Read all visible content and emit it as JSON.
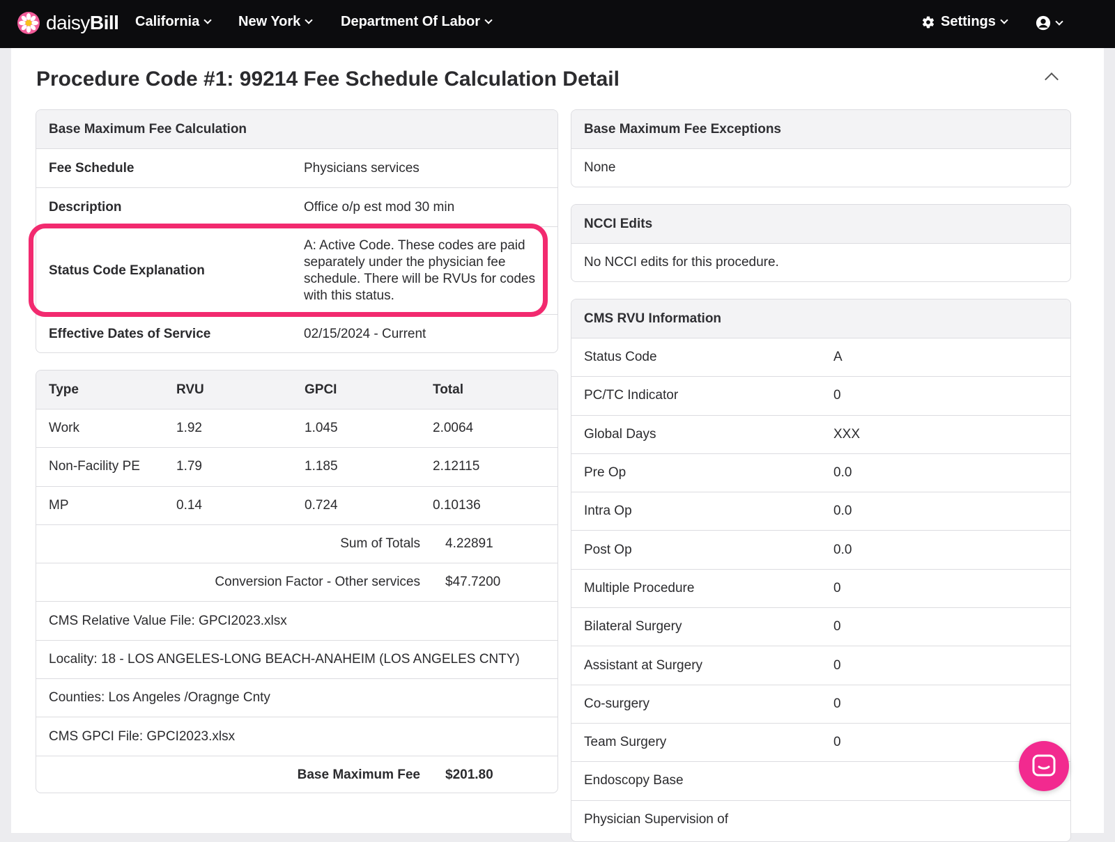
{
  "brand": {
    "name_light": "daisy",
    "name_bold": "Bill"
  },
  "nav": {
    "california": "California",
    "new_york": "New York",
    "dol": "Department Of Labor",
    "settings": "Settings"
  },
  "page": {
    "title_bold": "Procedure Code #1: 99214",
    "title_rest": " Fee Schedule Calculation Detail"
  },
  "base_calc": {
    "heading": "Base Maximum Fee Calculation",
    "rows": [
      {
        "k": "Fee Schedule",
        "v": "Physicians services"
      },
      {
        "k": "Description",
        "v": "Office o/p est mod 30 min"
      },
      {
        "k": "Status Code Explanation",
        "v": "A: Active Code. These codes are paid separately under the physician fee schedule. There will be RVUs for codes with this status."
      },
      {
        "k": "Effective Dates of Service",
        "v": "02/15/2024 - Current"
      }
    ]
  },
  "rvu_table": {
    "headers": [
      "Type",
      "RVU",
      "GPCI",
      "Total"
    ],
    "rows": [
      [
        "Work",
        "1.92",
        "1.045",
        "2.0064"
      ],
      [
        "Non-Facility PE",
        "1.79",
        "1.185",
        "2.12115"
      ],
      [
        "MP",
        "0.14",
        "0.724",
        "0.10136"
      ]
    ],
    "sum_label": "Sum of Totals",
    "sum_value": "4.22891",
    "cf_label": "Conversion Factor - Other services",
    "cf_value": "$47.7200",
    "rv_file": "CMS Relative Value File: GPCI2023.xlsx",
    "locality": "Locality: 18 - LOS ANGELES-LONG BEACH-ANAHEIM (LOS ANGELES CNTY)",
    "counties": "Counties: Los Angeles /Oragnge Cnty",
    "gpci_file": "CMS GPCI File: GPCI2023.xlsx",
    "bmf_label": "Base Maximum Fee",
    "bmf_value": "$201.80"
  },
  "exceptions": {
    "heading": "Base Maximum Fee Exceptions",
    "body": "None"
  },
  "ncci": {
    "heading": "NCCI Edits",
    "body": "No NCCI edits for this procedure."
  },
  "cms_rvu": {
    "heading": "CMS RVU Information",
    "rows": [
      {
        "k": "Status Code",
        "v": "A"
      },
      {
        "k": "PC/TC Indicator",
        "v": "0"
      },
      {
        "k": "Global Days",
        "v": "XXX"
      },
      {
        "k": "Pre Op",
        "v": "0.0"
      },
      {
        "k": "Intra Op",
        "v": "0.0"
      },
      {
        "k": "Post Op",
        "v": "0.0"
      },
      {
        "k": "Multiple Procedure",
        "v": "0"
      },
      {
        "k": "Bilateral Surgery",
        "v": "0"
      },
      {
        "k": "Assistant at Surgery",
        "v": "0"
      },
      {
        "k": "Co-surgery",
        "v": "0"
      },
      {
        "k": "Team Surgery",
        "v": "0"
      },
      {
        "k": "Endoscopy Base",
        "v": ""
      },
      {
        "k": "Physician Supervision of",
        "v": ""
      }
    ]
  },
  "colors": {
    "accent": "#f22a6f",
    "nav_bg": "#0c0c0e"
  },
  "icons": [
    "daisy-logo-icon",
    "chevron-down-icon",
    "gear-icon",
    "user-circle-icon",
    "chevron-up-icon",
    "chat-icon"
  ]
}
